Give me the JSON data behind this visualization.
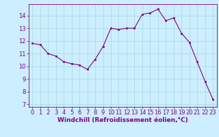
{
  "x": [
    0,
    1,
    2,
    3,
    4,
    5,
    6,
    7,
    8,
    9,
    10,
    11,
    12,
    13,
    14,
    15,
    16,
    17,
    18,
    19,
    20,
    21,
    22,
    23
  ],
  "y": [
    11.8,
    11.7,
    11.0,
    10.8,
    10.35,
    10.2,
    10.1,
    9.75,
    10.55,
    11.55,
    13.0,
    12.9,
    13.0,
    13.0,
    14.1,
    14.2,
    14.5,
    13.6,
    13.8,
    12.6,
    11.9,
    10.35,
    8.8,
    7.4
  ],
  "line_color": "#800080",
  "marker": "s",
  "marker_size": 2.0,
  "bg_color": "#cceeff",
  "grid_color": "#aadddd",
  "xlabel": "Windchill (Refroidissement éolien,°C)",
  "xlabel_fontsize": 6.5,
  "tick_fontsize": 6.0,
  "ylim": [
    6.8,
    14.9
  ],
  "xlim": [
    -0.5,
    23.5
  ],
  "yticks": [
    7,
    8,
    9,
    10,
    11,
    12,
    13,
    14
  ],
  "xticks": [
    0,
    1,
    2,
    3,
    4,
    5,
    6,
    7,
    8,
    9,
    10,
    11,
    12,
    13,
    14,
    15,
    16,
    17,
    18,
    19,
    20,
    21,
    22,
    23
  ]
}
